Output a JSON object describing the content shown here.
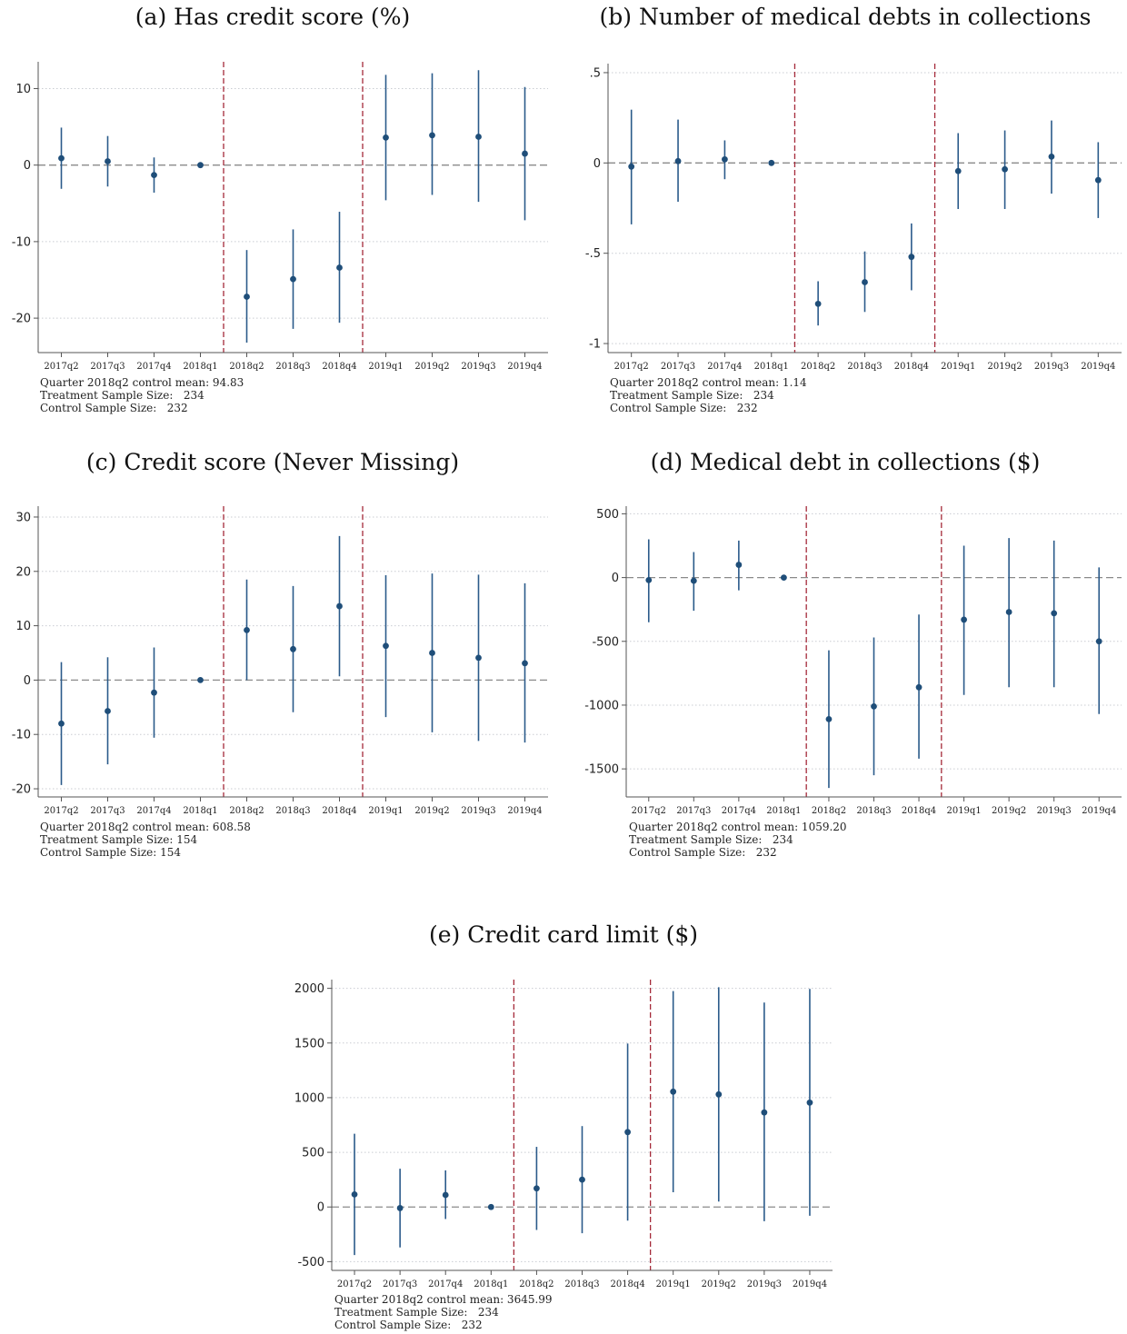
{
  "chart_data": [
    {
      "type": "scatter",
      "title": "(a) Has credit score (%)",
      "categories": [
        "2017q2",
        "2017q3",
        "2017q4",
        "2018q1",
        "2018q2",
        "2018q3",
        "2018q4",
        "2019q1",
        "2019q2",
        "2019q3",
        "2019q4"
      ],
      "estimate": [
        0.9,
        0.5,
        -1.3,
        0.0,
        -17.2,
        -14.9,
        -13.4,
        3.6,
        3.9,
        3.7,
        1.5
      ],
      "ci_low": [
        -3.1,
        -2.8,
        -3.6,
        0.0,
        -23.2,
        -21.4,
        -20.6,
        -4.6,
        -3.9,
        -4.8,
        -7.2
      ],
      "ci_high": [
        4.9,
        3.8,
        1.0,
        0.0,
        -11.1,
        -8.4,
        -6.1,
        11.8,
        12.0,
        12.4,
        10.2
      ],
      "yticks": [
        10,
        0,
        -10,
        -20
      ],
      "yticklabels": [
        "10",
        "0",
        "-10",
        "-20"
      ],
      "ylim": [
        -24.5,
        13.5
      ],
      "vlines_after": [
        "2018q1",
        "2018q4"
      ],
      "hline": 0,
      "notes": [
        "Quarter 2018q2 control mean: 94.83",
        "Treatment Sample Size:   234",
        "Control Sample Size:   232"
      ]
    },
    {
      "type": "scatter",
      "title": "(b) Number of medical debts in collections",
      "categories": [
        "2017q2",
        "2017q3",
        "2017q4",
        "2018q1",
        "2018q2",
        "2018q3",
        "2018q4",
        "2019q1",
        "2019q2",
        "2019q3",
        "2019q4"
      ],
      "estimate": [
        -0.02,
        0.01,
        0.02,
        0.0,
        -0.78,
        -0.66,
        -0.52,
        -0.045,
        -0.035,
        0.035,
        -0.095
      ],
      "ci_low": [
        -0.34,
        -0.215,
        -0.09,
        0.0,
        -0.9,
        -0.825,
        -0.705,
        -0.255,
        -0.255,
        -0.17,
        -0.305
      ],
      "ci_high": [
        0.295,
        0.24,
        0.125,
        0.0,
        -0.655,
        -0.49,
        -0.335,
        0.165,
        0.18,
        0.235,
        0.115
      ],
      "yticks": [
        0.5,
        0,
        -0.5,
        -1
      ],
      "yticklabels": [
        ".5",
        "0",
        "-.5",
        "-1"
      ],
      "ylim": [
        -1.05,
        0.55
      ],
      "vlines_after": [
        "2018q1",
        "2018q4"
      ],
      "hline": 0,
      "notes": [
        "Quarter 2018q2 control mean: 1.14",
        "Treatment Sample Size:   234",
        "Control Sample Size:   232"
      ]
    },
    {
      "type": "scatter",
      "title": "(c) Credit score (Never Missing)",
      "categories": [
        "2017q2",
        "2017q3",
        "2017q4",
        "2018q1",
        "2018q2",
        "2018q3",
        "2018q4",
        "2019q1",
        "2019q2",
        "2019q3",
        "2019q4"
      ],
      "estimate": [
        -8.0,
        -5.7,
        -2.3,
        0.0,
        9.2,
        5.7,
        13.6,
        6.3,
        5.0,
        4.1,
        3.1
      ],
      "ci_low": [
        -19.3,
        -15.5,
        -10.6,
        0.0,
        0.0,
        -5.9,
        0.7,
        -6.8,
        -9.6,
        -11.2,
        -11.5
      ],
      "ci_high": [
        3.3,
        4.2,
        6.0,
        0.0,
        18.5,
        17.3,
        26.5,
        19.3,
        19.6,
        19.4,
        17.8
      ],
      "yticks": [
        30,
        20,
        10,
        0,
        -10,
        -20
      ],
      "yticklabels": [
        "30",
        "20",
        "10",
        "0",
        "-10",
        "-20"
      ],
      "ylim": [
        -21.5,
        32
      ],
      "vlines_after": [
        "2018q1",
        "2018q4"
      ],
      "hline": 0,
      "notes": [
        "Quarter 2018q2 control mean: 608.58",
        "Treatment Sample Size: 154",
        "Control Sample Size: 154"
      ]
    },
    {
      "type": "scatter",
      "title": "(d) Medical debt in collections ($)",
      "categories": [
        "2017q2",
        "2017q3",
        "2017q4",
        "2018q1",
        "2018q2",
        "2018q3",
        "2018q4",
        "2019q1",
        "2019q2",
        "2019q3",
        "2019q4"
      ],
      "estimate": [
        -20,
        -25,
        100,
        0,
        -1110,
        -1010,
        -860,
        -330,
        -270,
        -280,
        -500
      ],
      "ci_low": [
        -350,
        -260,
        -100,
        0,
        -1650,
        -1550,
        -1420,
        -920,
        -860,
        -860,
        -1070
      ],
      "ci_high": [
        300,
        200,
        290,
        0,
        -570,
        -470,
        -290,
        250,
        310,
        290,
        80
      ],
      "yticks": [
        500,
        0,
        -500,
        -1000,
        -1500
      ],
      "yticklabels": [
        "500",
        "0",
        "-500",
        "-1000",
        "-1500"
      ],
      "ylim": [
        -1720,
        560
      ],
      "vlines_after": [
        "2018q1",
        "2018q4"
      ],
      "hline": 0,
      "notes": [
        "Quarter 2018q2 control mean: 1059.20",
        "Treatment Sample Size:   234",
        "Control Sample Size:   232"
      ]
    },
    {
      "type": "scatter",
      "title": "(e) Credit card limit ($)",
      "categories": [
        "2017q2",
        "2017q3",
        "2017q4",
        "2018q1",
        "2018q2",
        "2018q3",
        "2018q4",
        "2019q1",
        "2019q2",
        "2019q3",
        "2019q4"
      ],
      "estimate": [
        115,
        -10,
        110,
        0,
        170,
        250,
        685,
        1055,
        1030,
        865,
        955
      ],
      "ci_low": [
        -440,
        -370,
        -110,
        0,
        -210,
        -240,
        -125,
        135,
        50,
        -130,
        -80
      ],
      "ci_high": [
        670,
        350,
        335,
        0,
        550,
        740,
        1495,
        1975,
        2010,
        1870,
        1995
      ],
      "yticks": [
        2000,
        1500,
        1000,
        500,
        0,
        -500
      ],
      "yticklabels": [
        "2000",
        "1500",
        "1000",
        "500",
        "0",
        "-500"
      ],
      "ylim": [
        -580,
        2080
      ],
      "vlines_after": [
        "2018q1",
        "2018q4"
      ],
      "hline": 0,
      "notes": [
        "Quarter 2018q2 control mean: 3645.99",
        "Treatment Sample Size:   234",
        "Control Sample Size:   232"
      ]
    }
  ],
  "colors": {
    "marker": "#1f4e79",
    "ci": "#2a5a8a",
    "vline": "#a52a3a",
    "hline": "#8a8a8a",
    "grid": "#c9ccd2",
    "axis": "#555555"
  }
}
